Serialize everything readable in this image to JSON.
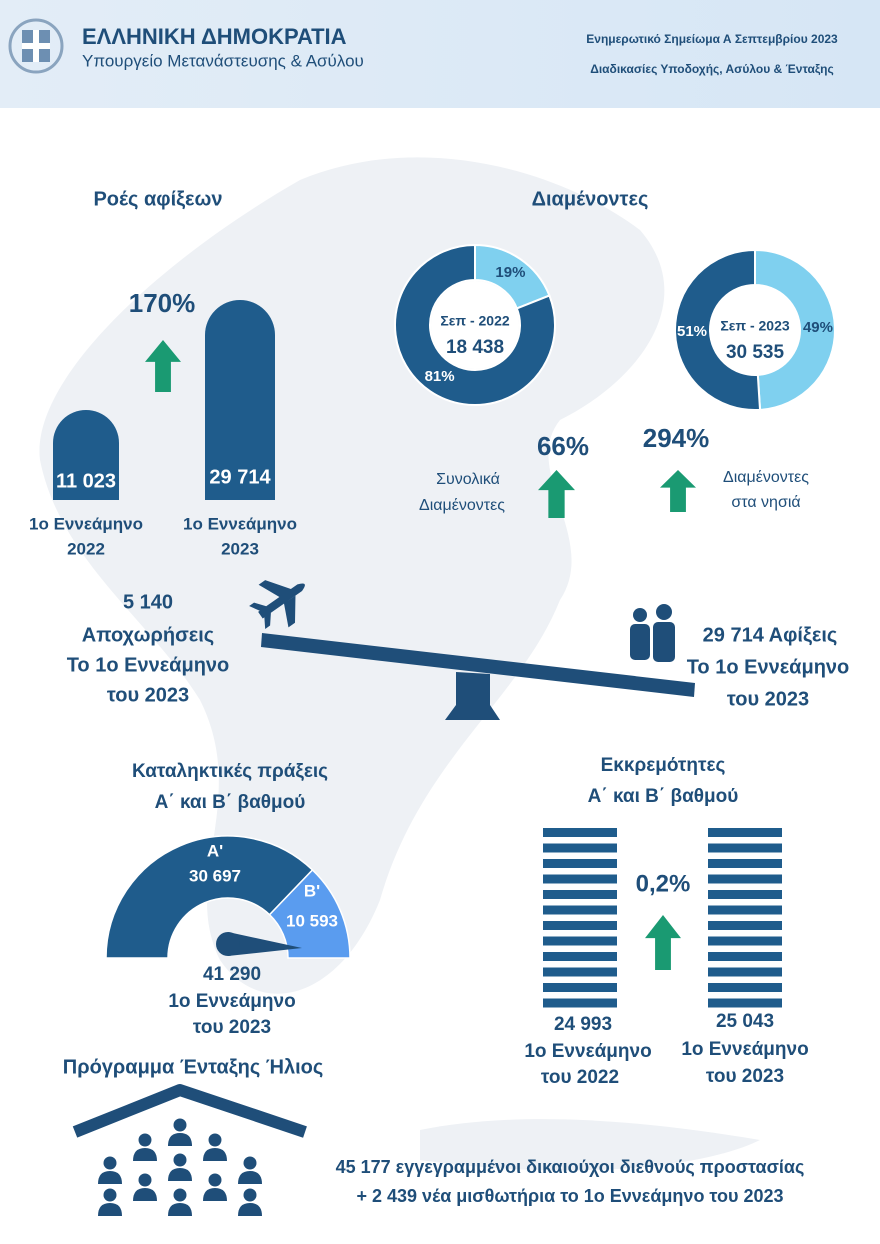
{
  "header": {
    "title": "ΕΛΛΗΝΙΚΗ ΔΗΜΟΚΡΑΤΙΑ",
    "subtitle": "Υπουργείο Μετανάστευσης & Ασύλου",
    "note_title": "Ενημερωτικό Σημείωμα Α Σεπτεμβρίου 2023",
    "note_subtitle": "Διαδικασίες Υποδοχής, Ασύλου & Ένταξης"
  },
  "arrivals": {
    "title": "Ροές αφίξεων",
    "change": "170%",
    "bars": [
      {
        "value": "11 023",
        "period": "1ο Εννεάμηνο",
        "year": "2022"
      },
      {
        "value": "29 714",
        "period": "1ο Εννεάμηνο",
        "year": "2023"
      }
    ]
  },
  "residents": {
    "title": "Διαμένοντες",
    "donuts": [
      {
        "label": "Σεπ - 2022",
        "total": "18 438",
        "segments": [
          {
            "value": 19,
            "label": "19%",
            "color": "#7fd0ef"
          },
          {
            "value": 81,
            "label": "81%",
            "color": "#1f5c8c"
          }
        ]
      },
      {
        "label": "Σεπ - 2023",
        "total": "30 535",
        "segments": [
          {
            "value": 49,
            "label": "49%",
            "color": "#7fd0ef"
          },
          {
            "value": 51,
            "label": "51%",
            "color": "#1f5c8c"
          }
        ]
      }
    ],
    "total_change": "66%",
    "total_label": [
      "Συνολικά",
      "Διαμένοντες"
    ],
    "islands_change": "294%",
    "islands_label": [
      "Διαμένοντες",
      "στα νησιά"
    ]
  },
  "balance": {
    "departures": [
      "5 140",
      "Αποχωρήσεις",
      "Το 1ο Εννεάμηνο",
      "του 2023"
    ],
    "arrivals": [
      "29 714 Αφίξεις",
      "Το 1ο Εννεάμηνο",
      "του 2023"
    ]
  },
  "decisions": {
    "title": [
      "Καταληκτικές πράξεις",
      "Α΄ και Β΄ βαθμού"
    ],
    "segments": [
      {
        "name": "Α'",
        "value": 30697,
        "label": "30 697",
        "color": "#1f5c8c"
      },
      {
        "name": "Β'",
        "value": 10593,
        "label": "10 593",
        "color": "#5a9cef"
      }
    ],
    "total": "41 290",
    "period": [
      "1ο Εννεάμηνο",
      "του 2023"
    ]
  },
  "pending": {
    "title": [
      "Εκκρεμότητες",
      "Α΄ και Β΄ βαθμού"
    ],
    "change": "0,2%",
    "columns": [
      {
        "value": "24 993",
        "period": "1ο Εννεάμηνο",
        "year": "του 2022"
      },
      {
        "value": "25 043",
        "period": "1ο Εννεάμηνο",
        "year": "του 2023"
      }
    ]
  },
  "helios": {
    "title": "Πρόγραμμα Ένταξης Ήλιος",
    "lines": [
      "45 177 εγγεγραμμένοι δικαιούχοι διεθνούς προστασίας",
      "+ 2 439 νέα μισθωτήρια το 1ο Εννεάμηνο του 2023"
    ]
  }
}
